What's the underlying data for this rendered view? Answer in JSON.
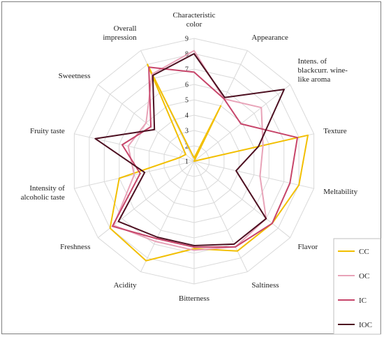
{
  "chart_data": {
    "type": "radar",
    "axes": [
      [
        "Characteristic",
        "color"
      ],
      [
        "Appearance"
      ],
      [
        "Intens. of",
        "blackcurr. wine-",
        "like aroma"
      ],
      [
        "Texture"
      ],
      [
        "Meltability"
      ],
      [
        "Flavor"
      ],
      [
        "Saltiness"
      ],
      [
        "Bitterness"
      ],
      [
        "Acidity"
      ],
      [
        "Freshness"
      ],
      [
        "Intensity of",
        "alcoholic taste"
      ],
      [
        "Fruity taste"
      ],
      [
        "Sweetness"
      ],
      [
        "Overall",
        "impression"
      ]
    ],
    "rlim": [
      1,
      9
    ],
    "ticks": [
      "1",
      "2",
      "3",
      "4",
      "5",
      "6",
      "7",
      "8",
      "9"
    ],
    "grid": true,
    "legend_position": "bottom-right",
    "series": [
      {
        "name": "CC",
        "color": "#f2bf00",
        "values": [
          1.2,
          5.0,
          1.0,
          8.6,
          8.0,
          7.5,
          7.5,
          6.7,
          8.2,
          8.0,
          6.0,
          2.0,
          1.7,
          8.0
        ]
      },
      {
        "name": "OC",
        "color": "#e8a3b8",
        "values": [
          8.2,
          5.5,
          6.6,
          5.6,
          5.4,
          7.0,
          7.2,
          6.8,
          6.8,
          7.7,
          5.0,
          5.4,
          5.0,
          7.3
        ]
      },
      {
        "name": "IC",
        "color": "#c7456a",
        "values": [
          6.8,
          5.5,
          4.9,
          7.9,
          7.4,
          7.5,
          7.2,
          6.6,
          6.6,
          7.8,
          4.6,
          5.8,
          4.6,
          7.8
        ]
      },
      {
        "name": "IOC",
        "color": "#4d1021",
        "values": [
          8.0,
          5.6,
          8.5,
          5.3,
          3.8,
          7.0,
          7.0,
          6.5,
          6.5,
          7.3,
          4.3,
          7.6,
          4.3,
          7.2
        ]
      }
    ]
  }
}
